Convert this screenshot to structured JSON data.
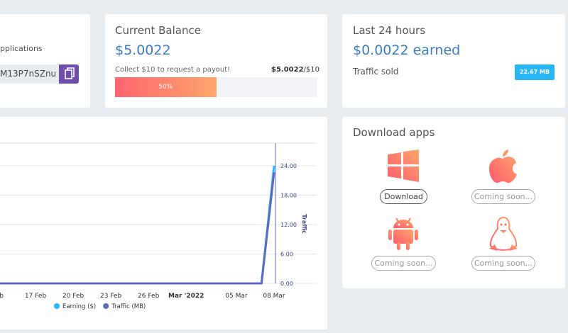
{
  "sidebar_card": {
    "label": "pplications",
    "input": "M13P7nSZnu"
  },
  "balance_card": {
    "title": "Current Balance",
    "amount": "$5.0022",
    "hint": "Collect $10 to request a payout!",
    "current": "$5.0022",
    "target": "/$10",
    "progress": {
      "value": 50,
      "label": "50%"
    }
  },
  "last24_card": {
    "title": "Last 24 hours",
    "earned": "$0.0022 earned",
    "traffic_label": "Traffic sold",
    "traffic": "22.67 MB"
  },
  "download_card": {
    "title": "Download apps",
    "buttons": [
      "Download",
      "Coming soon...",
      "Coming soon...",
      "Coming soon..."
    ]
  },
  "chart_data": {
    "type": "line",
    "categories": [
      "Feb",
      null,
      null,
      "17 Feb",
      null,
      null,
      "20 Feb",
      null,
      null,
      "23 Feb",
      null,
      null,
      "26 Feb",
      null,
      null,
      "Mar '2022",
      null,
      null,
      null,
      "05 Mar",
      null,
      null,
      "08 Mar"
    ],
    "series": [
      {
        "name": "Earning ($)",
        "color": "#29b6f6",
        "axis": "y",
        "values": [
          0,
          0,
          0,
          0,
          0,
          0,
          0,
          0,
          0,
          0,
          0,
          0,
          0,
          0,
          0,
          0,
          0,
          0,
          0,
          0,
          0,
          0,
          0.0022
        ]
      },
      {
        "name": "Traffic (MB)",
        "color": "#5c6bc0",
        "axis": "y2",
        "values": [
          0,
          0,
          0,
          0,
          0,
          0,
          0,
          0,
          0,
          0,
          0,
          0,
          0,
          0,
          0,
          0,
          0,
          0,
          0,
          0,
          0,
          0,
          22.67
        ]
      }
    ],
    "ylim": [
      0,
      0.0022
    ],
    "y2lim": [
      0,
      24
    ],
    "y2ticks": [
      {
        "value": 0,
        "label": "0.00"
      },
      {
        "value": 6,
        "label": "6.00"
      },
      {
        "value": 12,
        "label": "12.00"
      },
      {
        "value": 18,
        "label": "18.00"
      },
      {
        "value": 24,
        "label": "24.00"
      }
    ],
    "y2label": "Traffic",
    "grid": true
  }
}
